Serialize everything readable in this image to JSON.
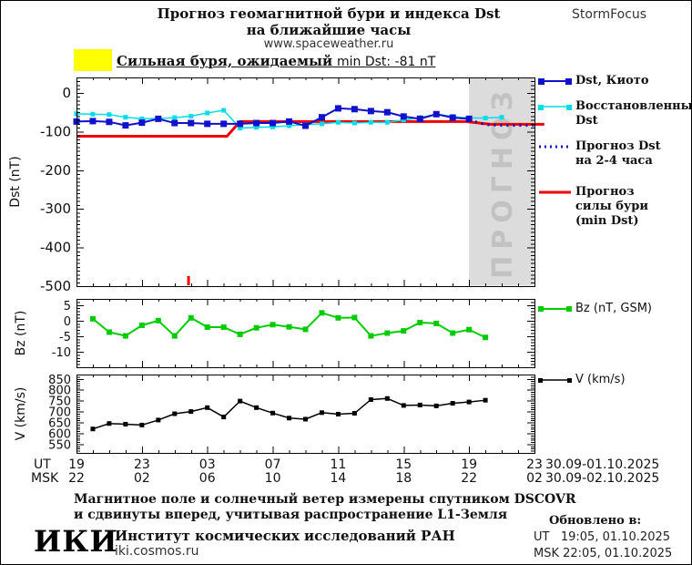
{
  "header": {
    "title_line1": "Прогноз геомагнитной бури и индекса Dst",
    "title_line2": "на ближайшие часы",
    "website": "www.spaceweather.ru",
    "brand": "StormFocus"
  },
  "alert": {
    "swatch_color": "#ffff00",
    "storm_text": "Сильная буря, ожидаемый",
    "value_text": "min Dst: -81 nT"
  },
  "colors": {
    "kyoto_blue": "#1111cc",
    "restored_cyan": "#00dde8",
    "forecast_red": "#ee0000",
    "bz_green": "#00cc00",
    "v_black": "#000000",
    "forecast_region_fill": "#dcdcdc",
    "forecast_region_text": "#c2c2c2"
  },
  "chart_data": [
    {
      "id": "dst",
      "type": "line",
      "ylabel": "Dst (nT)",
      "ylim": [
        -500,
        40
      ],
      "yticks": [
        0,
        -100,
        -200,
        -300,
        -400,
        -500
      ],
      "ytick_labels": [
        "0",
        "-100",
        "-200",
        "-300",
        "-400",
        "-500"
      ],
      "y_minor_step": 10,
      "xlim": [
        0,
        28
      ],
      "grid": false,
      "forecast_region": {
        "x_start": 24,
        "x_end": 28,
        "label": "ПРОГНОЗ"
      },
      "event_marker": {
        "x": 6.85,
        "color": "#ee0000"
      },
      "series": [
        {
          "name": "Прогноз силы бури (min Dst)",
          "color": "#ee0000",
          "width": 3,
          "marker": 0,
          "overflow_right": true,
          "x": [
            0,
            9.2,
            10,
            23.8,
            25.3,
            28.6
          ],
          "values": [
            -112,
            -112,
            -74,
            -74,
            -81,
            -81
          ]
        },
        {
          "name": "Восстановленный Dst",
          "color": "#00dde8",
          "width": 1.5,
          "marker": 5,
          "x": [
            0,
            1,
            2,
            3,
            4,
            5,
            6,
            7,
            8,
            9,
            10,
            11,
            12,
            13,
            14,
            15,
            16,
            17,
            18,
            19,
            20,
            21,
            22,
            23,
            24,
            25,
            26
          ],
          "values": [
            -54,
            -55,
            -56,
            -63,
            -67,
            -66,
            -64,
            -60,
            -52,
            -45,
            -91,
            -89,
            -88,
            -85,
            -82,
            -80,
            -76,
            -78,
            -76,
            -76,
            -70,
            -64,
            -55,
            -61,
            -65,
            -65,
            -63
          ]
        },
        {
          "name": "Dst, Киото",
          "color": "#1111cc",
          "width": 2,
          "marker": 7,
          "x": [
            0,
            1,
            2,
            3,
            4,
            5,
            6,
            7,
            8,
            9,
            10,
            11,
            12,
            13,
            14,
            15,
            16,
            17,
            18,
            19,
            20,
            21,
            22,
            23,
            24
          ],
          "values": [
            -74,
            -73,
            -75,
            -84,
            -77,
            -67,
            -78,
            -78,
            -80,
            -80,
            -80,
            -78,
            -78,
            -74,
            -85,
            -63,
            -40,
            -42,
            -47,
            -50,
            -61,
            -67,
            -55,
            -64,
            -67
          ]
        },
        {
          "name": "Прогноз Dst на 2-4 часа",
          "color": "#1111cc",
          "width": 3,
          "marker": 0,
          "dash": "2 5",
          "x": [
            24,
            25,
            26,
            27,
            28
          ],
          "values": [
            -70,
            -82,
            -84,
            -84,
            -84
          ]
        }
      ]
    },
    {
      "id": "bz",
      "type": "line",
      "ylabel": "Bz (nT)",
      "ylim": [
        -15,
        7
      ],
      "yticks": [
        5,
        0,
        -5,
        -10
      ],
      "ytick_labels": [
        "5",
        "0",
        "-5",
        "-10"
      ],
      "y_minor_step": 1,
      "xlim": [
        0,
        28
      ],
      "grid": false,
      "series": [
        {
          "name": "Bz (nT, GSM)",
          "color": "#00cc00",
          "width": 2,
          "marker": 6,
          "x": [
            1,
            2,
            3,
            4,
            5,
            6,
            7,
            8,
            9,
            10,
            11,
            12,
            13,
            14,
            15,
            16,
            17,
            18,
            19,
            20,
            21,
            22,
            23,
            24,
            25
          ],
          "values": [
            0.6,
            -3.7,
            -4.9,
            -1.5,
            0,
            -4.9,
            0.9,
            -2.1,
            -2.1,
            -4.4,
            -2.3,
            -1.3,
            -2.0,
            -2.8,
            2.5,
            0.9,
            1.0,
            -4.9,
            -4.0,
            -3.3,
            -0.6,
            -0.9,
            -4.0,
            -2.9,
            -5.4
          ]
        }
      ]
    },
    {
      "id": "v",
      "type": "line",
      "ylabel": "V (km/s)",
      "ylim": [
        510,
        870
      ],
      "yticks": [
        850,
        800,
        750,
        700,
        650,
        600,
        550
      ],
      "ytick_labels": [
        "850",
        "800",
        "750",
        "700",
        "650",
        "600",
        "550"
      ],
      "y_minor_step": 10,
      "xlim": [
        0,
        28
      ],
      "grid": false,
      "series": [
        {
          "name": "V (km/s)",
          "color": "#000000",
          "width": 1.5,
          "marker": 5,
          "x": [
            1,
            2,
            3,
            4,
            5,
            6,
            7,
            8,
            9,
            10,
            11,
            12,
            13,
            14,
            15,
            16,
            17,
            18,
            19,
            20,
            21,
            22,
            23,
            24,
            25
          ],
          "values": [
            620,
            645,
            642,
            638,
            661,
            690,
            700,
            718,
            675,
            748,
            718,
            693,
            670,
            665,
            695,
            688,
            692,
            755,
            760,
            728,
            730,
            726,
            738,
            744,
            752
          ]
        }
      ]
    }
  ],
  "xaxis": {
    "ut_prefix": "UT",
    "msk_prefix": "MSK",
    "ut_ticks": [
      "19",
      "23",
      "03",
      "07",
      "11",
      "15",
      "19",
      "23"
    ],
    "msk_ticks": [
      "22",
      "02",
      "06",
      "10",
      "14",
      "18",
      "22",
      "02"
    ],
    "ut_daterange": "30.09-01.10.2025",
    "msk_daterange": "30.09-02.10.2025"
  },
  "legend": {
    "items": [
      {
        "color": "#1111cc",
        "style": "solid-squares",
        "label_lines": [
          "Dst, Киото"
        ]
      },
      {
        "color": "#00dde8",
        "style": "solid-squares",
        "label_lines": [
          "Восстановленный",
          "Dst"
        ]
      },
      {
        "color": "#1111cc",
        "style": "dotted",
        "label_lines": [
          "Прогноз Dst",
          "на 2-4 часа"
        ]
      },
      {
        "color": "#ee0000",
        "style": "solid",
        "label_lines": [
          "Прогноз",
          "силы бури",
          "(min Dst)"
        ]
      },
      {
        "color": "#00cc00",
        "style": "solid-squares",
        "label_lines": [
          "Bz (nT, GSM)"
        ]
      },
      {
        "color": "#000000",
        "style": "solid-squares",
        "label_lines": [
          "V (km/s)"
        ]
      }
    ]
  },
  "footer": {
    "note_line1": "Магнитное поле и солнечный ветер измерены спутником DSCOVR",
    "note_line2": "и сдвинуты вперед, учитывая распространение L1-Земля",
    "logo_text": "ИКИ",
    "institute": "Институт космических исследований РАН",
    "institute_site": "iki.cosmos.ru",
    "updated_title": "Обновлено в:",
    "updated_ut": "UT   19:05, 01.10.2025",
    "updated_msk": "MSK 22:05, 01.10.2025"
  }
}
